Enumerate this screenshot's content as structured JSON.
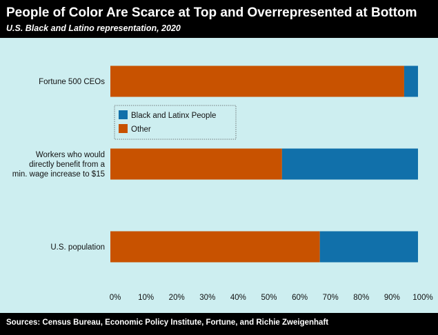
{
  "header": {
    "title": "People of Color Are Scarce at Top and Overrepresented at Bottom",
    "subtitle": "U.S. Black and Latino representation, 2020"
  },
  "footer": {
    "source": "Sources: Census Bureau, Economic Policy Institute, Fortune, and Richie Zweigenhaft"
  },
  "colors": {
    "black_latinx": "#1170aa",
    "other": "#c85200",
    "plot_background": "#cdeef0"
  },
  "chart_data": {
    "type": "bar",
    "orientation": "horizontal",
    "stacked": true,
    "title": "People of Color Are Scarce at Top and Overrepresented at Bottom",
    "subtitle": "U.S. Black and Latino representation, 2020",
    "categories": [
      [
        "Fortune 500 CEOs"
      ],
      [
        "Workers who would",
        "directly benefit from a",
        "min. wage increase to $15"
      ],
      [
        "U.S. population"
      ]
    ],
    "series": [
      {
        "name": "Other",
        "values": [
          95.5,
          55.8,
          68.1
        ]
      },
      {
        "name": "Black and Latinx People",
        "values": [
          4.5,
          44.2,
          31.9
        ]
      }
    ],
    "xlim": [
      0,
      100
    ],
    "x_ticks": [
      "0%",
      "10%",
      "20%",
      "30%",
      "40%",
      "50%",
      "60%",
      "70%",
      "80%",
      "90%",
      "100%"
    ],
    "legend": {
      "placement": "upper-left inside",
      "entries": [
        "Black and Latinx People",
        "Other"
      ]
    },
    "grid": false
  }
}
